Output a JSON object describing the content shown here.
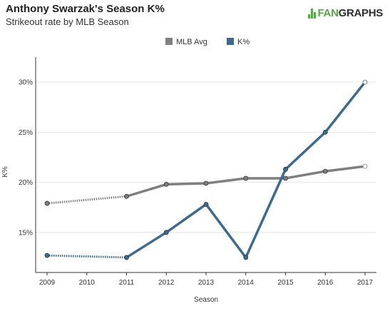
{
  "header": {
    "title": "Anthony Swarzak's Season K%",
    "subtitle": "Strikeout rate by MLB Season",
    "logo_fan": "FAN",
    "logo_graphs": "GRAPHS"
  },
  "colors": {
    "mlb_avg": "#7f7f7f",
    "k_pct": "#3d6a8e",
    "grid": "#e3e3e3",
    "axis": "#333333"
  },
  "chart_data": {
    "type": "line",
    "title": "Anthony Swarzak's Season K%",
    "subtitle": "Strikeout rate by MLB Season",
    "xlabel": "Season",
    "ylabel": "K%",
    "x": [
      2009,
      2010,
      2011,
      2012,
      2013,
      2014,
      2015,
      2016,
      2017
    ],
    "x_ticks": [
      "2009",
      "2010",
      "2011",
      "2012",
      "2013",
      "2014",
      "2015",
      "2016",
      "2017"
    ],
    "y_ticks": [
      "15%",
      "20%",
      "25%",
      "30%"
    ],
    "y_tick_values": [
      15,
      20,
      25,
      30
    ],
    "ylim": [
      11,
      32.5
    ],
    "xlim": [
      2009,
      2017
    ],
    "legend": "top-center",
    "grid": "horizontal",
    "series": [
      {
        "name": "MLB Avg",
        "color_key": "mlb_avg",
        "points": [
          {
            "x": 2009,
            "y": 17.9
          },
          {
            "x": 2011,
            "y": 18.6
          },
          {
            "x": 2012,
            "y": 19.8
          },
          {
            "x": 2013,
            "y": 19.9
          },
          {
            "x": 2014,
            "y": 20.4
          },
          {
            "x": 2015,
            "y": 20.4
          },
          {
            "x": 2016,
            "y": 21.1
          },
          {
            "x": 2017,
            "y": 21.6
          }
        ],
        "dotted_segments": [
          [
            2009,
            2011
          ]
        ],
        "hollow_points": [
          2017
        ]
      },
      {
        "name": "K%",
        "color_key": "k_pct",
        "points": [
          {
            "x": 2009,
            "y": 12.7
          },
          {
            "x": 2011,
            "y": 12.5
          },
          {
            "x": 2012,
            "y": 15.0
          },
          {
            "x": 2013,
            "y": 17.8
          },
          {
            "x": 2014,
            "y": 12.5
          },
          {
            "x": 2015,
            "y": 21.3
          },
          {
            "x": 2016,
            "y": 25.0
          },
          {
            "x": 2017,
            "y": 30.0
          }
        ],
        "dotted_segments": [
          [
            2009,
            2011
          ]
        ],
        "hollow_points": [
          2017
        ]
      }
    ]
  }
}
